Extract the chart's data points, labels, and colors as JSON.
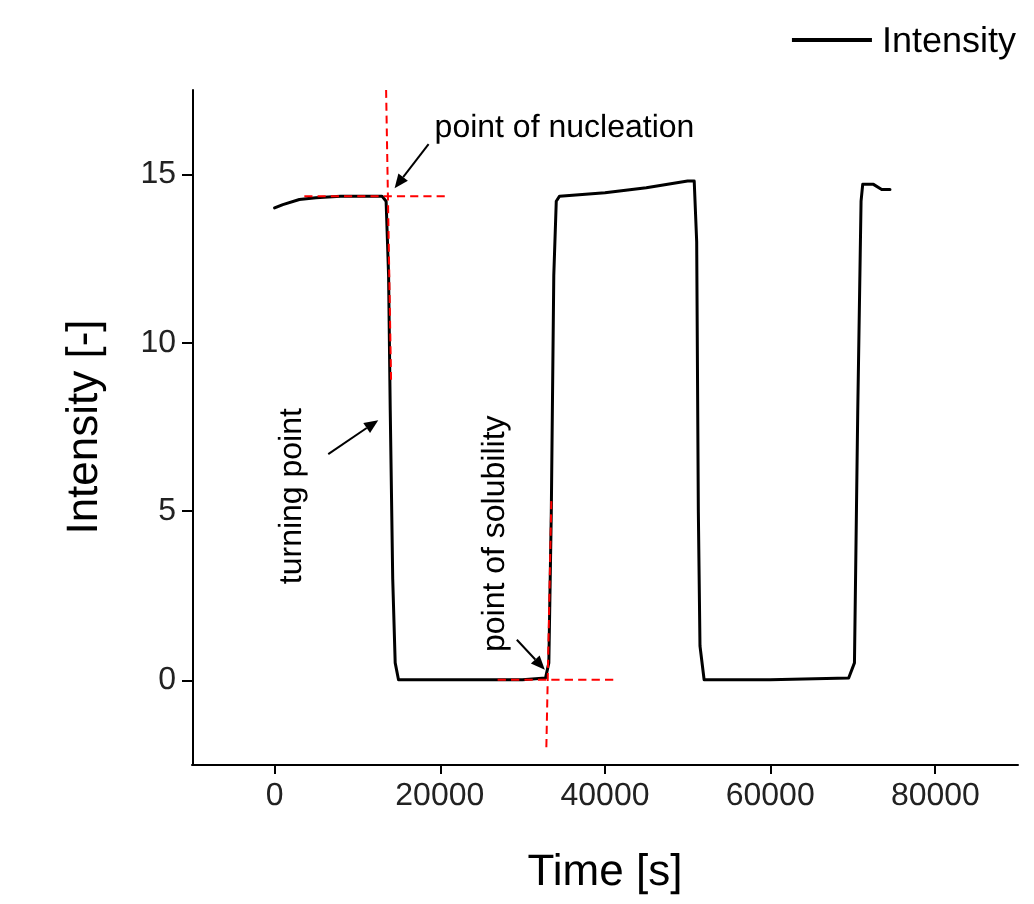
{
  "chart_data": {
    "type": "line",
    "xlabel": "Time [s]",
    "ylabel": "Intensity [-]",
    "xlim": [
      -10000,
      90000
    ],
    "xticks": [
      0,
      20000,
      40000,
      60000,
      80000
    ],
    "ylim": [
      -2.5,
      17.5
    ],
    "yticks": [
      0,
      5,
      10,
      15
    ],
    "grid": false,
    "legend": "top right",
    "marker": "none",
    "series": [
      {
        "name": "Intensity",
        "color": "#000000",
        "x": [
          0,
          1000,
          3000,
          5000,
          8000,
          13000,
          13500,
          13800,
          14000,
          14300,
          14600,
          15000,
          20000,
          30000,
          32800,
          33200,
          33500,
          33800,
          34100,
          34500,
          40000,
          45000,
          50000,
          50800,
          51100,
          51300,
          51500,
          52000,
          60000,
          69500,
          70200,
          70600,
          71000,
          71200,
          72500,
          73500,
          74500
        ],
        "values": [
          14.0,
          14.1,
          14.25,
          14.3,
          14.35,
          14.35,
          14.2,
          12,
          8,
          3,
          0.5,
          0,
          0,
          0,
          0.05,
          0.5,
          5,
          12,
          14.2,
          14.35,
          14.45,
          14.6,
          14.8,
          14.8,
          13,
          5,
          1,
          0,
          0,
          0.05,
          0.5,
          8,
          14.2,
          14.7,
          14.7,
          14.55,
          14.55
        ]
      },
      {
        "color": "#ff0000",
        "line_style": "dashed",
        "x": [
          3600,
          20600
        ],
        "values": [
          14.35,
          14.35
        ]
      },
      {
        "color": "#ff0000",
        "line_style": "dashed",
        "x": [
          13500,
          14100
        ],
        "values": [
          17.5,
          8.9
        ]
      },
      {
        "color": "#ff0000",
        "line_style": "dashed",
        "x": [
          27000,
          41000
        ],
        "values": [
          0,
          0
        ]
      },
      {
        "color": "#ff0000",
        "line_style": "dashed",
        "x": [
          32900,
          33500
        ],
        "values": [
          -2,
          5.3
        ]
      }
    ],
    "annotations": [
      {
        "text": "point of nucleation",
        "x": 13800,
        "y": 14.35
      },
      {
        "text": "turning point",
        "x": 14000,
        "y": 8
      },
      {
        "text": "point of solubility",
        "x": 33200,
        "y": 0
      }
    ]
  }
}
